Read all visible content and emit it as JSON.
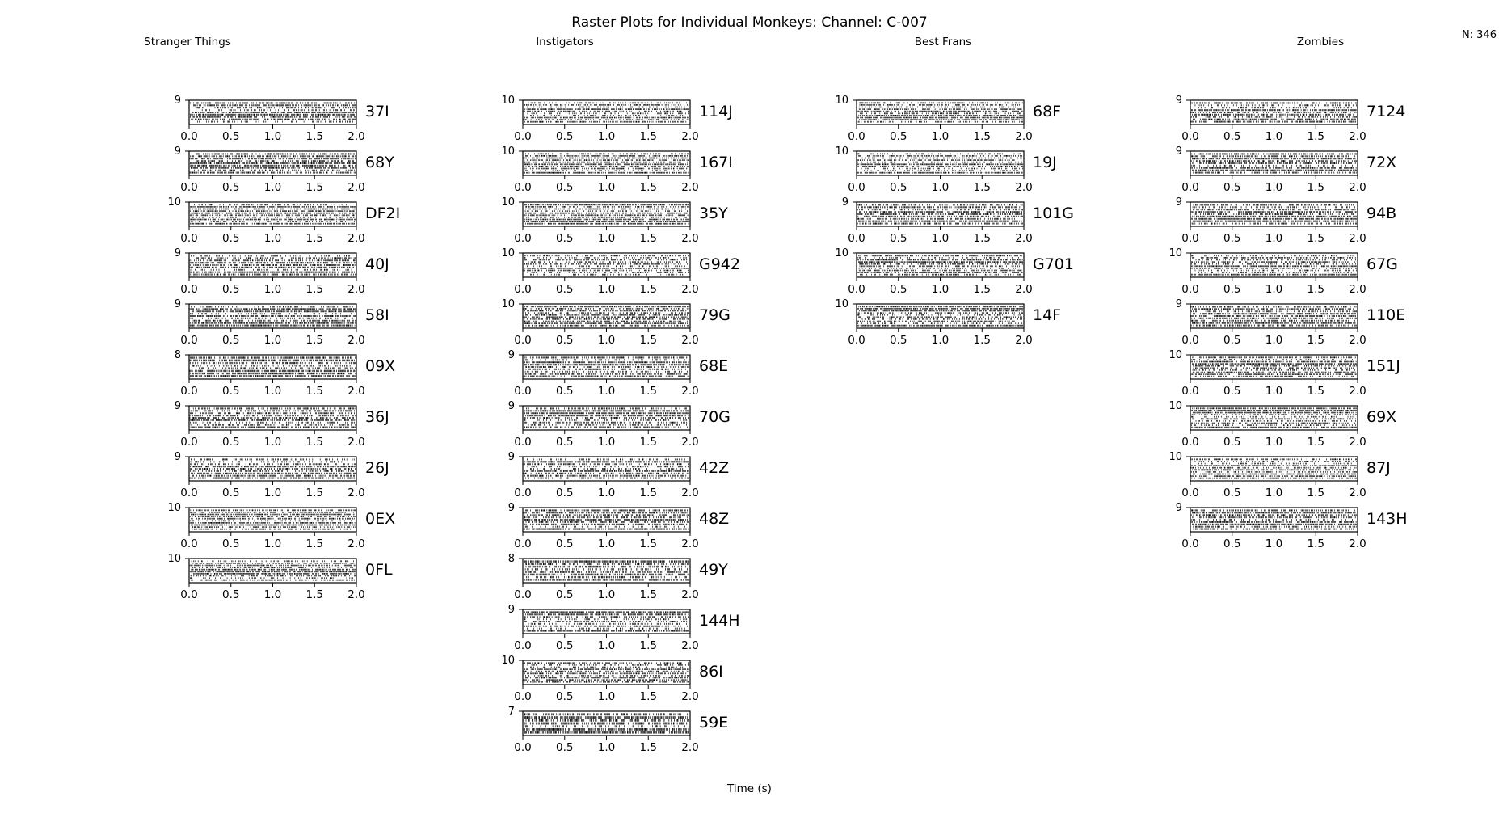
{
  "figure": {
    "title": "Raster Plots for Individual Monkeys: Channel: C-007",
    "count_label": "N: 346",
    "xlabel": "Time (s)"
  },
  "chart_data": {
    "type": "scatter",
    "subtype": "raster",
    "title": "Raster Plots for Individual Monkeys: Channel: C-007",
    "xlabel": "Time (s)",
    "xlim": [
      0.0,
      2.0
    ],
    "xticks": [
      "0.0",
      "0.5",
      "1.0",
      "1.5",
      "2.0"
    ],
    "grid": false,
    "groups": [
      {
        "name": "Stranger Things",
        "panels": [
          {
            "label": "37I",
            "trials": 9
          },
          {
            "label": "68Y",
            "trials": 9
          },
          {
            "label": "DF2I",
            "trials": 10
          },
          {
            "label": "40J",
            "trials": 9
          },
          {
            "label": "58I",
            "trials": 9
          },
          {
            "label": "09X",
            "trials": 8
          },
          {
            "label": "36J",
            "trials": 9
          },
          {
            "label": "26J",
            "trials": 9
          },
          {
            "label": "0EX",
            "trials": 10
          },
          {
            "label": "0FL",
            "trials": 10
          }
        ]
      },
      {
        "name": "Instigators",
        "panels": [
          {
            "label": "114J",
            "trials": 10
          },
          {
            "label": "167I",
            "trials": 10
          },
          {
            "label": "35Y",
            "trials": 10
          },
          {
            "label": "G942",
            "trials": 10
          },
          {
            "label": "79G",
            "trials": 10
          },
          {
            "label": "68E",
            "trials": 9
          },
          {
            "label": "70G",
            "trials": 9
          },
          {
            "label": "42Z",
            "trials": 9
          },
          {
            "label": "48Z",
            "trials": 9
          },
          {
            "label": "49Y",
            "trials": 8
          },
          {
            "label": "144H",
            "trials": 9
          },
          {
            "label": "86I",
            "trials": 10
          },
          {
            "label": "59E",
            "trials": 7
          }
        ]
      },
      {
        "name": "Best Frans",
        "panels": [
          {
            "label": "68F",
            "trials": 10
          },
          {
            "label": "19J",
            "trials": 10
          },
          {
            "label": "101G",
            "trials": 9
          },
          {
            "label": "G701",
            "trials": 10
          },
          {
            "label": "14F",
            "trials": 10
          }
        ]
      },
      {
        "name": "Zombies",
        "panels": [
          {
            "label": "7124",
            "trials": 9
          },
          {
            "label": "72X",
            "trials": 9
          },
          {
            "label": "94B",
            "trials": 9
          },
          {
            "label": "67G",
            "trials": 10
          },
          {
            "label": "110E",
            "trials": 9
          },
          {
            "label": "151J",
            "trials": 10
          },
          {
            "label": "69X",
            "trials": 10
          },
          {
            "label": "87J",
            "trials": 10
          },
          {
            "label": "143H",
            "trials": 9
          }
        ]
      }
    ]
  }
}
